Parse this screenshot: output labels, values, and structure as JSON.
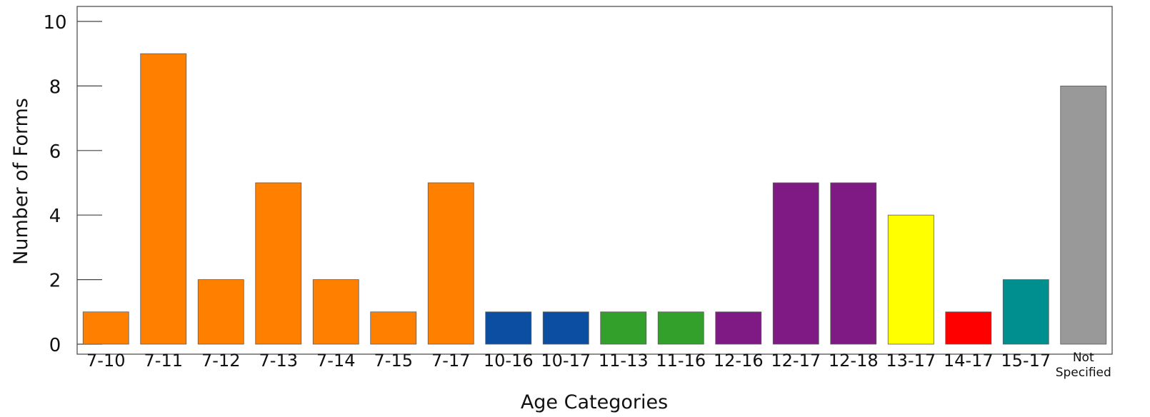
{
  "chart_data": {
    "type": "bar",
    "title": "",
    "xlabel": "Age Categories",
    "ylabel": "Number of Forms",
    "ylim": [
      0,
      10.6
    ],
    "yticks": [
      0,
      2,
      4,
      6,
      8,
      10
    ],
    "grid": false,
    "categories": [
      "7-10",
      "7-11",
      "7-12",
      "7-13",
      "7-14",
      "7-15",
      "7-17",
      "10-16",
      "10-17",
      "11-13",
      "11-16",
      "12-16",
      "12-17",
      "12-18",
      "13-17",
      "14-17",
      "15-17",
      "Not Specified"
    ],
    "category_lines": [
      [
        "7-10"
      ],
      [
        "7-11"
      ],
      [
        "7-12"
      ],
      [
        "7-13"
      ],
      [
        "7-14"
      ],
      [
        "7-15"
      ],
      [
        "7-17"
      ],
      [
        "10-16"
      ],
      [
        "10-17"
      ],
      [
        "11-13"
      ],
      [
        "11-16"
      ],
      [
        "12-16"
      ],
      [
        "12-17"
      ],
      [
        "12-18"
      ],
      [
        "13-17"
      ],
      [
        "14-17"
      ],
      [
        "15-17"
      ],
      [
        "Not",
        "Specified"
      ]
    ],
    "values": [
      1,
      9,
      2,
      5,
      2,
      1,
      5,
      1,
      1,
      1,
      1,
      1,
      5,
      5,
      4,
      1,
      2,
      8
    ],
    "colors": [
      "#FF8000",
      "#FF8000",
      "#FF8000",
      "#FF8000",
      "#FF8000",
      "#FF8000",
      "#FF8000",
      "#0B4EA2",
      "#0B4EA2",
      "#33A02C",
      "#33A02C",
      "#7F1A84",
      "#7F1A84",
      "#7F1A84",
      "#FFFF00",
      "#FF0000",
      "#008F8F",
      "#999999"
    ]
  }
}
